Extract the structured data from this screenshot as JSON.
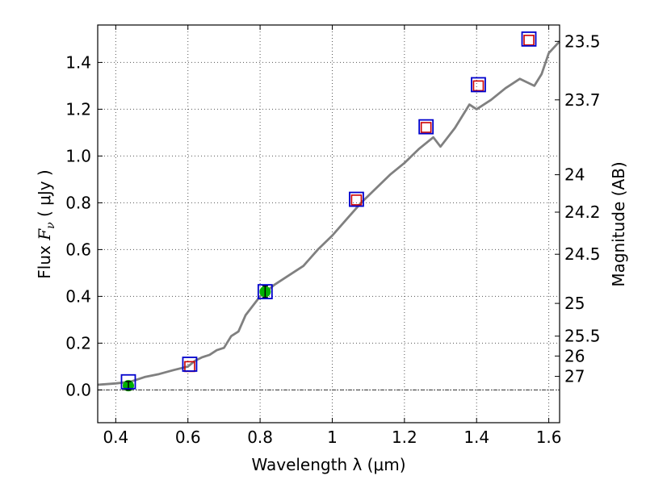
{
  "chart_data": {
    "type": "scatter",
    "xlabel": "Wavelength  λ (μm)",
    "ylabel_prefix": "Flux  ",
    "ylabel_symbol": "F",
    "ylabel_sub": "ν",
    "ylabel_suffix": "  ( μJy )",
    "y2label": "Magnitude (AB)",
    "xlim": [
      0.35,
      1.63
    ],
    "ylim": [
      -0.14,
      1.56
    ],
    "grid": true,
    "x_ticks": [
      {
        "value": 0.4,
        "label": "0.4"
      },
      {
        "value": 0.6,
        "label": "0.6"
      },
      {
        "value": 0.8,
        "label": "0.8"
      },
      {
        "value": 1.0,
        "label": "1"
      },
      {
        "value": 1.2,
        "label": "1.2"
      },
      {
        "value": 1.4,
        "label": "1.4"
      },
      {
        "value": 1.6,
        "label": "1.6"
      }
    ],
    "y_ticks": [
      {
        "value": 0.0,
        "label": "0.0"
      },
      {
        "value": 0.2,
        "label": "0.2"
      },
      {
        "value": 0.4,
        "label": "0.4"
      },
      {
        "value": 0.6,
        "label": "0.6"
      },
      {
        "value": 0.8,
        "label": "0.8"
      },
      {
        "value": 1.0,
        "label": "1.0"
      },
      {
        "value": 1.2,
        "label": "1.2"
      },
      {
        "value": 1.4,
        "label": "1.4"
      }
    ],
    "mag_ticks": [
      {
        "flux": 1.49,
        "label": "23.5"
      },
      {
        "flux": 1.24,
        "label": "23.7"
      },
      {
        "flux": 0.92,
        "label": "24"
      },
      {
        "flux": 0.76,
        "label": "24.2"
      },
      {
        "flux": 0.58,
        "label": "24.5"
      },
      {
        "flux": 0.37,
        "label": "25"
      },
      {
        "flux": 0.23,
        "label": "25.5"
      },
      {
        "flux": 0.145,
        "label": "26"
      },
      {
        "flux": 0.058,
        "label": "27"
      }
    ],
    "zero_line": 0.0,
    "colors": {
      "model": "#808080",
      "observed": "#0000cc",
      "predicted": "#cc0000",
      "measured": "#00b000",
      "grid": "#555555",
      "zero_line": "#333333"
    },
    "model_spectrum": [
      [
        0.35,
        0.022
      ],
      [
        0.4,
        0.028
      ],
      [
        0.44,
        0.035
      ],
      [
        0.48,
        0.055
      ],
      [
        0.52,
        0.068
      ],
      [
        0.56,
        0.085
      ],
      [
        0.6,
        0.1
      ],
      [
        0.62,
        0.125
      ],
      [
        0.64,
        0.14
      ],
      [
        0.66,
        0.15
      ],
      [
        0.68,
        0.17
      ],
      [
        0.7,
        0.18
      ],
      [
        0.72,
        0.23
      ],
      [
        0.74,
        0.25
      ],
      [
        0.76,
        0.32
      ],
      [
        0.8,
        0.4
      ],
      [
        0.84,
        0.45
      ],
      [
        0.88,
        0.49
      ],
      [
        0.92,
        0.53
      ],
      [
        0.96,
        0.6
      ],
      [
        1.0,
        0.66
      ],
      [
        1.04,
        0.73
      ],
      [
        1.08,
        0.8
      ],
      [
        1.12,
        0.86
      ],
      [
        1.16,
        0.92
      ],
      [
        1.2,
        0.97
      ],
      [
        1.24,
        1.03
      ],
      [
        1.28,
        1.08
      ],
      [
        1.3,
        1.04
      ],
      [
        1.34,
        1.12
      ],
      [
        1.38,
        1.22
      ],
      [
        1.4,
        1.2
      ],
      [
        1.44,
        1.24
      ],
      [
        1.48,
        1.29
      ],
      [
        1.52,
        1.33
      ],
      [
        1.56,
        1.3
      ],
      [
        1.58,
        1.35
      ],
      [
        1.6,
        1.44
      ],
      [
        1.63,
        1.49
      ]
    ],
    "observed_points": [
      {
        "x": 0.435,
        "y": 0.035
      },
      {
        "x": 0.605,
        "y": 0.11
      },
      {
        "x": 0.814,
        "y": 0.42
      },
      {
        "x": 1.067,
        "y": 0.815
      },
      {
        "x": 1.26,
        "y": 1.125
      },
      {
        "x": 1.405,
        "y": 1.305
      },
      {
        "x": 1.545,
        "y": 1.5
      }
    ],
    "predicted_points": [
      {
        "x": 0.605,
        "y": 0.1
      },
      {
        "x": 1.067,
        "y": 0.812
      },
      {
        "x": 1.26,
        "y": 1.122
      },
      {
        "x": 1.405,
        "y": 1.3
      },
      {
        "x": 1.545,
        "y": 1.495
      }
    ],
    "measured_points": [
      {
        "x": 0.435,
        "y": 0.018,
        "err": 0.018
      },
      {
        "x": 0.814,
        "y": 0.42,
        "err": 0.025
      }
    ]
  }
}
